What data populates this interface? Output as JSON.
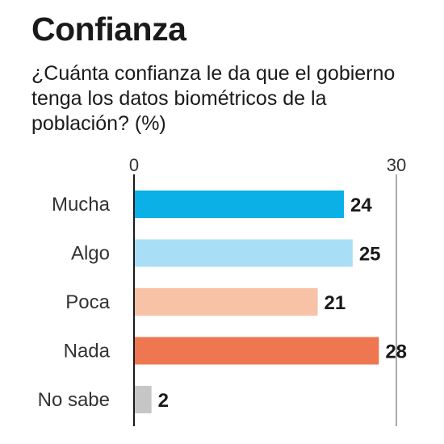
{
  "header": {
    "title": "Confianza",
    "subtitle": "¿Cuánta confianza le da que el gobierno tenga los datos biométricos de la población? (%)"
  },
  "chart_data": {
    "type": "bar",
    "orientation": "horizontal",
    "title": "Confianza",
    "subtitle": "¿Cuánta confianza le da que el gobierno tenga los datos biométricos de la población? (%)",
    "categories": [
      "Mucha",
      "Algo",
      "Poca",
      "Nada",
      "No sabe"
    ],
    "values": [
      24,
      25,
      21,
      28,
      2
    ],
    "colors": [
      "#0ab0e6",
      "#a9def7",
      "#f7c2a5",
      "#ee7650",
      "#c6c6c6"
    ],
    "xlim": [
      0,
      30
    ],
    "xticks": [
      0,
      30
    ],
    "grid": false
  }
}
